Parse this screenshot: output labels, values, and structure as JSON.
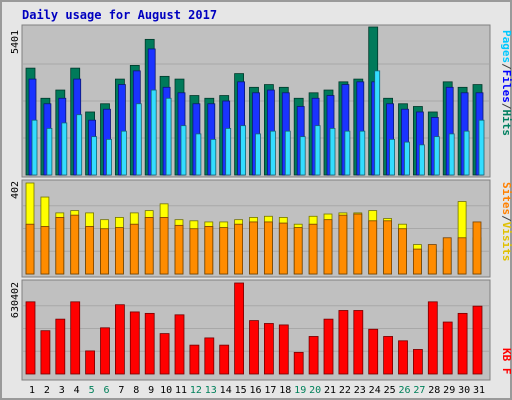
{
  "chart_data": [
    {
      "panel": "hits",
      "type": "bar",
      "title": "Daily usage for August 2017",
      "ymax_label": "5401",
      "categories": [
        "1",
        "2",
        "3",
        "4",
        "5",
        "6",
        "7",
        "8",
        "9",
        "10",
        "11",
        "12",
        "13",
        "14",
        "15",
        "16",
        "17",
        "18",
        "19",
        "20",
        "21",
        "22",
        "23",
        "24",
        "25",
        "26",
        "27",
        "28",
        "29",
        "30",
        "31"
      ],
      "weekend_days": [
        "5",
        "6",
        "12",
        "13",
        "19",
        "20",
        "26",
        "27"
      ],
      "legend": [
        {
          "label": "Pages",
          "color": "#00c8ff"
        },
        {
          "label": "/",
          "color": "#404040"
        },
        {
          "label": "Files",
          "color": "#0000ff"
        },
        {
          "label": "/",
          "color": "#404040"
        },
        {
          "label": "Hits",
          "color": "#008060"
        }
      ],
      "series": [
        {
          "name": "Hits",
          "color": "#007a5a",
          "values": [
            3900,
            2800,
            3100,
            3900,
            2300,
            2600,
            3500,
            4000,
            4950,
            3600,
            3500,
            2900,
            2800,
            2900,
            3700,
            3200,
            3300,
            3200,
            2800,
            3000,
            3100,
            3400,
            3500,
            5401,
            2800,
            2600,
            2500,
            2300,
            3400,
            3200,
            3300
          ]
        },
        {
          "name": "Files",
          "color": "#1a33ff",
          "values": [
            3500,
            2600,
            2800,
            3500,
            2000,
            2400,
            3300,
            3800,
            4600,
            3200,
            3000,
            2600,
            2600,
            2700,
            3400,
            3000,
            3100,
            3000,
            2500,
            2800,
            2900,
            3300,
            3400,
            3400,
            2600,
            2400,
            2300,
            2100,
            3200,
            3000,
            3000
          ]
        },
        {
          "name": "Pages",
          "color": "#33ddff",
          "values": [
            2000,
            1700,
            1900,
            2200,
            1400,
            1300,
            1600,
            2600,
            3100,
            2800,
            1800,
            1500,
            1300,
            1700,
            1800,
            1500,
            1600,
            1600,
            1400,
            1800,
            1700,
            1600,
            1600,
            3800,
            1300,
            1200,
            1100,
            1400,
            1500,
            1600,
            2000
          ]
        }
      ]
    },
    {
      "panel": "visits",
      "type": "bar",
      "ymax_label": "402",
      "legend": [
        {
          "label": "Sites",
          "color": "#ff8000"
        },
        {
          "label": "/",
          "color": "#404040"
        },
        {
          "label": "Visits",
          "color": "#ffd000"
        }
      ],
      "series": [
        {
          "name": "Visits",
          "color": "#ffff00",
          "values": [
            402,
            340,
            270,
            280,
            270,
            240,
            250,
            270,
            280,
            310,
            240,
            235,
            230,
            230,
            240,
            250,
            255,
            250,
            220,
            255,
            265,
            270,
            270,
            280,
            245,
            220,
            130,
            110,
            110,
            320,
            160
          ]
        },
        {
          "name": "Sites",
          "color": "#ff8c00",
          "values": [
            220,
            210,
            250,
            260,
            210,
            200,
            205,
            220,
            250,
            250,
            215,
            200,
            210,
            205,
            220,
            230,
            230,
            225,
            205,
            220,
            240,
            260,
            265,
            235,
            235,
            200,
            110,
            130,
            160,
            160,
            230
          ]
        }
      ]
    },
    {
      "panel": "kbytes",
      "type": "bar",
      "ymax_label": "630402",
      "legend": [
        {
          "label": "KB F",
          "color": "#ff0000"
        }
      ],
      "series": [
        {
          "name": "KB F",
          "color": "#ff0000",
          "values": [
            500000,
            300000,
            380000,
            500000,
            160000,
            320000,
            480000,
            430000,
            420000,
            280000,
            410000,
            200000,
            250000,
            200000,
            630402,
            370000,
            350000,
            340000,
            150000,
            260000,
            380000,
            440000,
            440000,
            310000,
            260000,
            230000,
            170000,
            500000,
            360000,
            420000,
            470000
          ]
        }
      ]
    }
  ]
}
